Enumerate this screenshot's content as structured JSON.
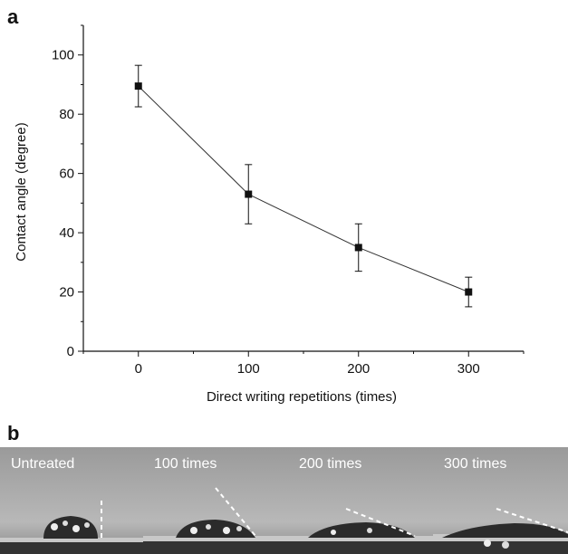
{
  "panel_a_label": "a",
  "panel_b_label": "b",
  "chart_data": {
    "type": "line",
    "xlabel": "Direct writing repetitions (times)",
    "ylabel": "Contact angle (degree)",
    "x": [
      0,
      100,
      200,
      300
    ],
    "y": [
      89.5,
      53,
      35,
      20
    ],
    "error": [
      7,
      10,
      8,
      5
    ],
    "xlim": [
      -50,
      350
    ],
    "ylim": [
      0,
      110
    ],
    "xticks": [
      "0",
      "100",
      "200",
      "300"
    ],
    "yticks": [
      "0",
      "20",
      "40",
      "60",
      "80",
      "100"
    ],
    "marker": "square",
    "grid": false
  },
  "photos": [
    {
      "caption": "Untreated",
      "contact_angle": 90
    },
    {
      "caption": "100 times",
      "contact_angle": 53
    },
    {
      "caption": "200 times",
      "contact_angle": 35
    },
    {
      "caption": "300 times",
      "contact_angle": 20
    }
  ]
}
